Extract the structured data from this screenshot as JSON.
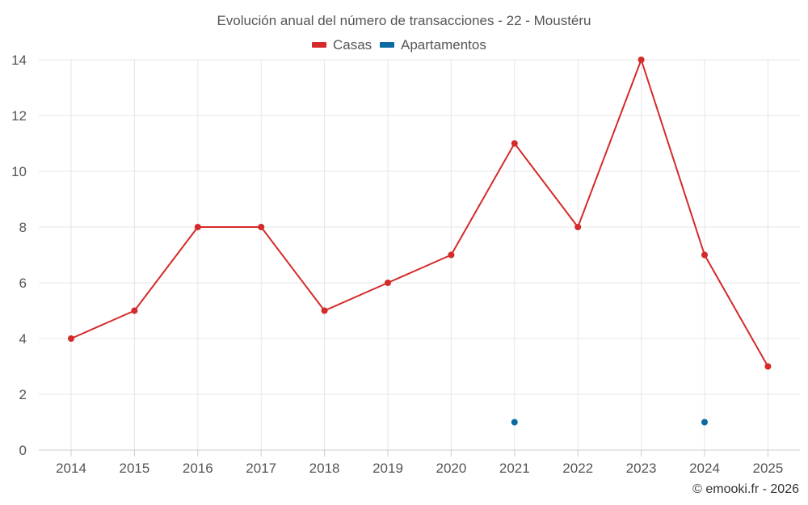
{
  "chart_data": {
    "type": "line",
    "title": "Evolución anual del número de transacciones - 22 - Moustéru",
    "categories": [
      "2014",
      "2015",
      "2016",
      "2017",
      "2018",
      "2019",
      "2020",
      "2021",
      "2022",
      "2023",
      "2024",
      "2025"
    ],
    "series": [
      {
        "name": "Casas",
        "color": "#d42a2a",
        "values": [
          4,
          5,
          8,
          8,
          5,
          6,
          7,
          11,
          8,
          14,
          7,
          3
        ]
      },
      {
        "name": "Apartamentos",
        "color": "#0a6aa1",
        "values": [
          null,
          null,
          null,
          null,
          null,
          null,
          null,
          1,
          null,
          null,
          1,
          null
        ]
      }
    ],
    "y_ticks": [
      "0",
      "2",
      "4",
      "6",
      "8",
      "10",
      "12",
      "14"
    ],
    "ylim": [
      0,
      14
    ],
    "grid": true,
    "legend": "top-center"
  },
  "credit": "© emooki.fr - 2026"
}
